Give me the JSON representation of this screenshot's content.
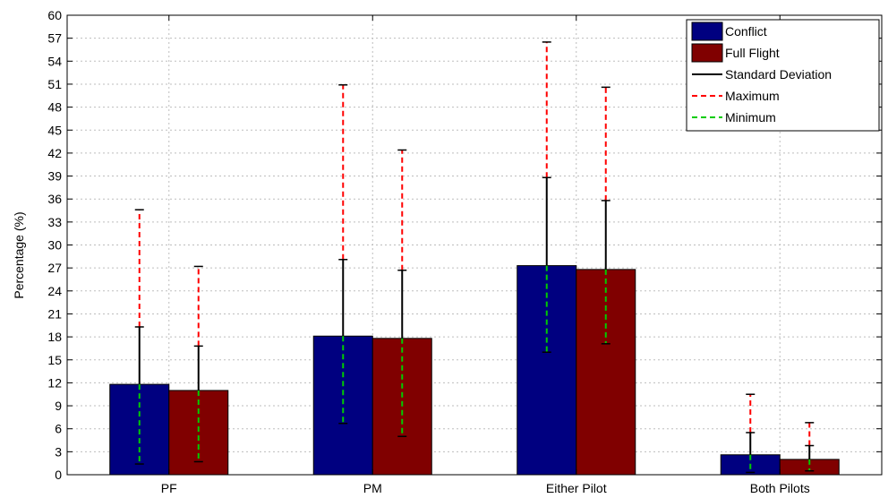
{
  "chart_data": {
    "type": "bar",
    "title": "",
    "xlabel": "",
    "ylabel": "Percentage (%)",
    "ylim": [
      0,
      60
    ],
    "yticks": [
      0,
      3,
      6,
      9,
      12,
      15,
      18,
      21,
      24,
      27,
      30,
      33,
      36,
      39,
      42,
      45,
      48,
      51,
      54,
      57,
      60
    ],
    "grid": true,
    "legend_position": "top-right",
    "categories": [
      "PF",
      "PM",
      "Either Pilot",
      "Both Pilots"
    ],
    "series": [
      {
        "name": "Conflict",
        "color": "#000080",
        "values": [
          11.8,
          18.1,
          27.3,
          2.6
        ],
        "std_upper": [
          19.3,
          28.1,
          38.8,
          5.5
        ],
        "maximum": [
          34.6,
          50.9,
          56.5,
          10.5
        ],
        "minimum": [
          1.4,
          6.7,
          16.0,
          0.3
        ]
      },
      {
        "name": "Full Flight",
        "color": "#800000",
        "values": [
          11.0,
          17.8,
          26.8,
          2.0
        ],
        "std_upper": [
          16.8,
          26.7,
          35.8,
          3.8
        ],
        "maximum": [
          27.2,
          42.4,
          50.6,
          6.8
        ],
        "minimum": [
          1.7,
          5.0,
          17.1,
          0.5
        ]
      }
    ],
    "legend": [
      {
        "label": "Conflict",
        "kind": "patch",
        "color": "#000080"
      },
      {
        "label": "Full Flight",
        "kind": "patch",
        "color": "#800000"
      },
      {
        "label": "Standard Deviation",
        "kind": "line-solid",
        "color": "#000000"
      },
      {
        "label": "Maximum",
        "kind": "line-dashed",
        "color": "#ff0000"
      },
      {
        "label": "Minimum",
        "kind": "line-dashed",
        "color": "#00cc00"
      }
    ]
  }
}
